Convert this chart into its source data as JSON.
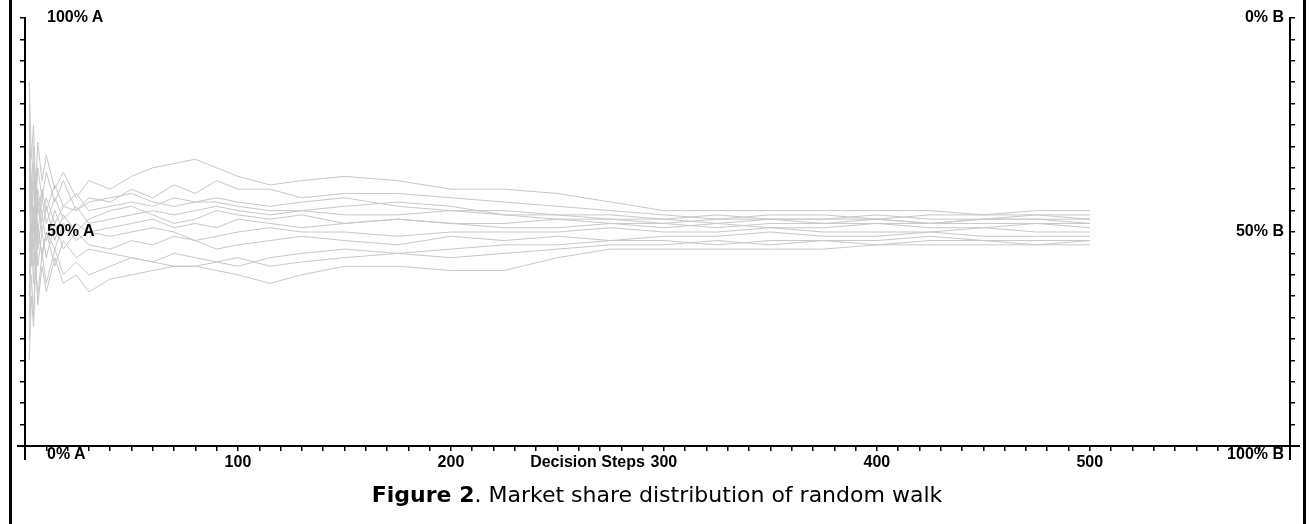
{
  "chart_data": {
    "type": "line",
    "title": "Figure 2. Market share distribution of random walk",
    "xlabel": "Decision Steps",
    "x": [
      2,
      3,
      4,
      5,
      6,
      8,
      10,
      14,
      18,
      24,
      30,
      40,
      50,
      60,
      70,
      80,
      90,
      100,
      115,
      130,
      150,
      175,
      200,
      225,
      250,
      275,
      300,
      325,
      350,
      375,
      400,
      425,
      450,
      475,
      500
    ],
    "series": [
      {
        "color": "#c8c8c8",
        "values": [
          85,
          67,
          75,
          60,
          71,
          62,
          68,
          60,
          64,
          58,
          62,
          60,
          63,
          65,
          66,
          67,
          65,
          63,
          61,
          62,
          63,
          62,
          60,
          60,
          59,
          57,
          55,
          55,
          55,
          55,
          55,
          55,
          54,
          55,
          55
        ]
      },
      {
        "color": "#c8c8c8",
        "values": [
          25,
          40,
          30,
          45,
          33,
          42,
          36,
          44,
          38,
          40,
          36,
          39,
          40,
          41,
          42,
          42,
          41,
          40,
          38,
          40,
          42,
          42,
          41,
          41,
          44,
          46,
          46,
          46,
          46,
          46,
          47,
          47,
          47,
          47,
          47
        ]
      },
      {
        "color": "#c8c8c8",
        "values": [
          80,
          60,
          70,
          55,
          65,
          58,
          64,
          57,
          62,
          55,
          58,
          57,
          60,
          58,
          61,
          59,
          62,
          60,
          60,
          58,
          59,
          59,
          58,
          57,
          56,
          55,
          54,
          53,
          54,
          54,
          53,
          54,
          54,
          54,
          54
        ]
      },
      {
        "color": "#c8c8c8",
        "values": [
          20,
          35,
          28,
          42,
          35,
          45,
          38,
          46,
          40,
          43,
          40,
          42,
          44,
          43,
          45,
          44,
          43,
          44,
          42,
          43,
          44,
          45,
          44,
          45,
          46,
          47,
          47,
          48,
          47,
          48,
          47,
          48,
          48,
          47,
          48
        ]
      },
      {
        "color": "#c8c8c8",
        "values": [
          70,
          50,
          62,
          48,
          58,
          50,
          56,
          48,
          54,
          50,
          53,
          55,
          56,
          54,
          52,
          53,
          55,
          54,
          53,
          54,
          52,
          53,
          52,
          51,
          51,
          52,
          51,
          52,
          51,
          51,
          52,
          51,
          51,
          52,
          51
        ]
      },
      {
        "color": "#c8c8c8",
        "values": [
          30,
          48,
          38,
          52,
          42,
          50,
          44,
          52,
          46,
          50,
          47,
          46,
          48,
          47,
          49,
          48,
          46,
          47,
          48,
          49,
          48,
          47,
          49,
          48,
          49,
          48,
          49,
          49,
          50,
          49,
          49,
          50,
          49,
          49,
          49
        ]
      },
      {
        "color": "#c8c8c8",
        "values": [
          75,
          55,
          66,
          52,
          60,
          54,
          58,
          52,
          56,
          55,
          57,
          58,
          59,
          57,
          56,
          57,
          58,
          57,
          56,
          57,
          58,
          56,
          55,
          55,
          54,
          53,
          53,
          54,
          53,
          53,
          54,
          53,
          53,
          54,
          53
        ]
      },
      {
        "color": "#c8c8c8",
        "values": [
          35,
          52,
          42,
          56,
          46,
          54,
          48,
          55,
          50,
          52,
          50,
          49,
          50,
          51,
          50,
          48,
          49,
          50,
          51,
          50,
          50,
          49,
          50,
          50,
          50,
          51,
          50,
          50,
          51,
          50,
          50,
          50,
          51,
          50,
          50
        ]
      },
      {
        "color": "#c8c8c8",
        "values": [
          60,
          45,
          55,
          42,
          50,
          45,
          50,
          46,
          52,
          48,
          50,
          51,
          52,
          53,
          51,
          52,
          51,
          53,
          52,
          51,
          52,
          53,
          52,
          52,
          53,
          52,
          52,
          51,
          52,
          52,
          53,
          52,
          52,
          52,
          52
        ]
      },
      {
        "color": "#c8c8c8",
        "values": [
          40,
          58,
          46,
          60,
          50,
          58,
          52,
          58,
          53,
          56,
          52,
          53,
          54,
          55,
          54,
          55,
          56,
          55,
          54,
          55,
          54,
          54,
          55,
          54,
          53,
          53,
          52,
          53,
          53,
          52,
          52,
          52,
          53,
          53,
          53
        ]
      },
      {
        "color": "#c8c8c8",
        "values": [
          65,
          42,
          56,
          40,
          52,
          44,
          50,
          42,
          48,
          44,
          46,
          45,
          44,
          43,
          42,
          42,
          43,
          42,
          44,
          45,
          46,
          45,
          46,
          47,
          47,
          48,
          48,
          47,
          48,
          48,
          48,
          49,
          48,
          48,
          48
        ]
      },
      {
        "color": "#c8c8c8",
        "values": [
          45,
          62,
          50,
          64,
          54,
          60,
          55,
          61,
          56,
          59,
          55,
          56,
          57,
          56,
          58,
          57,
          57,
          56,
          55,
          55,
          56,
          57,
          56,
          54,
          54,
          54,
          53,
          52,
          53,
          53,
          53,
          52,
          53,
          53,
          52
        ]
      }
    ],
    "xlim": [
      0,
      594
    ],
    "xticks": [
      {
        "value": 0,
        "label": null
      },
      {
        "value": 10,
        "label": null
      },
      {
        "value": 20,
        "label": null
      },
      {
        "value": 30,
        "label": null
      },
      {
        "value": 40,
        "label": null
      },
      {
        "value": 50,
        "label": null
      },
      {
        "value": 60,
        "label": null
      },
      {
        "value": 70,
        "label": null
      },
      {
        "value": 80,
        "label": null
      },
      {
        "value": 90,
        "label": null
      },
      100,
      {
        "value": 110,
        "label": null
      },
      {
        "value": 120,
        "label": null
      },
      {
        "value": 130,
        "label": null
      },
      {
        "value": 140,
        "label": null
      },
      {
        "value": 150,
        "label": null
      },
      {
        "value": 160,
        "label": null
      },
      {
        "value": 170,
        "label": null
      },
      {
        "value": 180,
        "label": null
      },
      {
        "value": 190,
        "label": null
      },
      200,
      {
        "value": 210,
        "label": null
      },
      {
        "value": 220,
        "label": null
      },
      {
        "value": 230,
        "label": null
      },
      {
        "value": 240,
        "label": null
      },
      {
        "value": 250,
        "label": null
      },
      {
        "value": 260,
        "label": null
      },
      {
        "value": 270,
        "label": null
      },
      {
        "value": 280,
        "label": null
      },
      {
        "value": 290,
        "label": null
      },
      300,
      {
        "value": 310,
        "label": null
      },
      {
        "value": 320,
        "label": null
      },
      {
        "value": 330,
        "label": null
      },
      {
        "value": 340,
        "label": null
      },
      {
        "value": 350,
        "label": null
      },
      {
        "value": 360,
        "label": null
      },
      {
        "value": 370,
        "label": null
      },
      {
        "value": 380,
        "label": null
      },
      {
        "value": 390,
        "label": null
      },
      400,
      {
        "value": 410,
        "label": null
      },
      {
        "value": 420,
        "label": null
      },
      {
        "value": 430,
        "label": null
      },
      {
        "value": 440,
        "label": null
      },
      {
        "value": 450,
        "label": null
      },
      {
        "value": 460,
        "label": null
      },
      {
        "value": 470,
        "label": null
      },
      {
        "value": 480,
        "label": null
      },
      {
        "value": 490,
        "label": null
      },
      500,
      {
        "value": 510,
        "label": null
      },
      {
        "value": 520,
        "label": null
      },
      {
        "value": 530,
        "label": null
      },
      {
        "value": 540,
        "label": null
      },
      {
        "value": 550,
        "label": null
      },
      {
        "value": 560,
        "label": null
      },
      {
        "value": 570,
        "label": null
      },
      {
        "value": 580,
        "label": null
      },
      {
        "value": 590,
        "label": null
      }
    ],
    "ylim": [
      0,
      100
    ],
    "yticks": [
      {
        "value": 0,
        "label": "0% A"
      },
      {
        "value": 5,
        "label": null
      },
      {
        "value": 10,
        "label": null
      },
      {
        "value": 15,
        "label": null
      },
      {
        "value": 20,
        "label": null
      },
      {
        "value": 25,
        "label": null
      },
      {
        "value": 30,
        "label": null
      },
      {
        "value": 35,
        "label": null
      },
      {
        "value": 40,
        "label": null
      },
      {
        "value": 45,
        "label": null
      },
      {
        "value": 50,
        "label": "50% A"
      },
      {
        "value": 55,
        "label": null
      },
      {
        "value": 60,
        "label": null
      },
      {
        "value": 65,
        "label": null
      },
      {
        "value": 70,
        "label": null
      },
      {
        "value": 75,
        "label": null
      },
      {
        "value": 80,
        "label": null
      },
      {
        "value": 85,
        "label": null
      },
      {
        "value": 90,
        "label": null
      },
      {
        "value": 95,
        "label": null
      },
      {
        "value": 100,
        "label": "100% A"
      }
    ],
    "y2lim": [
      100,
      0
    ],
    "y2ticks": [
      {
        "value": 100,
        "label": "100% B"
      },
      {
        "value": 95,
        "label": null
      },
      {
        "value": 90,
        "label": null
      },
      {
        "value": 85,
        "label": null
      },
      {
        "value": 80,
        "label": null
      },
      {
        "value": 75,
        "label": null
      },
      {
        "value": 70,
        "label": null
      },
      {
        "value": 65,
        "label": null
      },
      {
        "value": 60,
        "label": null
      },
      {
        "value": 55,
        "label": null
      },
      {
        "value": 50,
        "label": "50% B"
      },
      {
        "value": 45,
        "label": null
      },
      {
        "value": 40,
        "label": null
      },
      {
        "value": 35,
        "label": null
      },
      {
        "value": 30,
        "label": null
      },
      {
        "value": 25,
        "label": null
      },
      {
        "value": 20,
        "label": null
      },
      {
        "value": 15,
        "label": null
      },
      {
        "value": 10,
        "label": null
      },
      {
        "value": 5,
        "label": null
      },
      {
        "value": 0,
        "label": "0% B"
      }
    ],
    "grid": false,
    "legend": false,
    "marker": "none",
    "line_style": "solid"
  }
}
